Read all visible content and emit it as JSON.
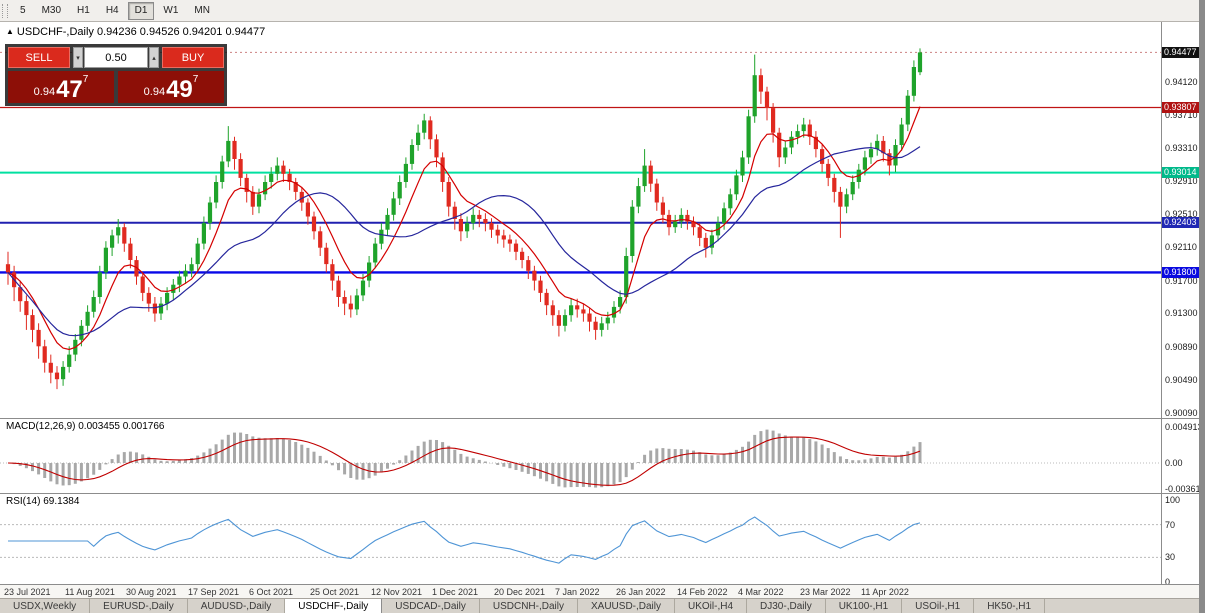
{
  "toolbar": {
    "timeframes": [
      "5",
      "M30",
      "H1",
      "H4",
      "D1",
      "W1",
      "MN"
    ],
    "active": "D1"
  },
  "chart": {
    "symbol_title": "USDCHF-,Daily",
    "ohlc_text": "0.94236 0.94526 0.94201 0.94477",
    "marker": "▲",
    "up_color": "#1fa32b",
    "down_color": "#e02a20",
    "ma_fast_color": "#d40000",
    "ma_slow_color": "#26269c"
  },
  "trade_panel": {
    "sell_label": "SELL",
    "buy_label": "BUY",
    "volume": "0.50",
    "spin_down": "▾",
    "spin_up": "▴",
    "sell_price_main": "0.94",
    "sell_price_big": "47",
    "sell_price_sup": "7",
    "buy_price_main": "0.94",
    "buy_price_big": "49",
    "buy_price_sup": "7"
  },
  "price_axis": {
    "ticks": [
      "0.94120",
      "0.93710",
      "0.93310",
      "0.92910",
      "0.92510",
      "0.92110",
      "0.91700",
      "0.91300",
      "0.90890",
      "0.90490",
      "0.90090"
    ],
    "tags": [
      {
        "text": "0.94477",
        "price": 0.94477,
        "bg": "#111111"
      },
      {
        "text": "0.93807",
        "price": 0.93807,
        "bg": "#b01212"
      },
      {
        "text": "0.93014",
        "price": 0.93014,
        "bg": "#00b98a"
      },
      {
        "text": "0.92403",
        "price": 0.92403,
        "bg": "#2028b4"
      },
      {
        "text": "0.91800",
        "price": 0.918,
        "bg": "#0a0ae0"
      }
    ]
  },
  "hlines": [
    {
      "price": 0.93807,
      "color": "#c01414",
      "width": 1.3
    },
    {
      "price": 0.93014,
      "color": "#00e0a0",
      "width": 2
    },
    {
      "price": 0.92403,
      "color": "#2020b0",
      "width": 2
    },
    {
      "price": 0.918,
      "color": "#0808e8",
      "width": 2.4
    }
  ],
  "macd": {
    "label": "MACD(12,26,9) 0.003455 0.001766",
    "axis": [
      {
        "text": "0.004913",
        "v": 0.004913
      },
      {
        "text": "0.00",
        "v": 0
      },
      {
        "text": "-0.00361",
        "v": -0.00361
      }
    ],
    "params": [
      12,
      26,
      9
    ]
  },
  "rsi": {
    "label": "RSI(14) 69.1384",
    "axis": [
      {
        "text": "100",
        "v": 100
      },
      {
        "text": "70",
        "v": 70
      },
      {
        "text": "30",
        "v": 30
      },
      {
        "text": "0",
        "v": 0
      }
    ],
    "period": 14,
    "line_color": "#4f95d6"
  },
  "tabs": [
    {
      "label": "USDX,Weekly",
      "active": false
    },
    {
      "label": "EURUSD-,Daily",
      "active": false
    },
    {
      "label": "AUDUSD-,Daily",
      "active": false
    },
    {
      "label": "USDCHF-,Daily",
      "active": true
    },
    {
      "label": "USDCAD-,Daily",
      "active": false
    },
    {
      "label": "USDCNH-,Daily",
      "active": false
    },
    {
      "label": "XAUUSD-,Daily",
      "active": false
    },
    {
      "label": "UKOil-,H4",
      "active": false
    },
    {
      "label": "DJ30-,Daily",
      "active": false
    },
    {
      "label": "UK100-,H1",
      "active": false
    },
    {
      "label": "USOil-,H1",
      "active": false
    },
    {
      "label": "HK50-,H1",
      "active": false
    }
  ],
  "chart_data": {
    "type": "candlestick",
    "symbol": "USDCHF",
    "timeframe": "Daily",
    "title": "USDCHF-,Daily",
    "y_range": [
      0.9004,
      0.9475
    ],
    "x_labels": [
      "23 Jul 2021",
      "11 Aug 2021",
      "30 Aug 2021",
      "17 Sep 2021",
      "6 Oct 2021",
      "25 Oct 2021",
      "12 Nov 2021",
      "1 Dec 2021",
      "20 Dec 2021",
      "7 Jan 2022",
      "26 Jan 2022",
      "14 Feb 2022",
      "4 Mar 2022",
      "23 Mar 2022",
      "11 Apr 2022"
    ],
    "x_label_step": 10,
    "candles": [
      [
        0.919,
        0.9205,
        0.9165,
        0.918
      ],
      [
        0.918,
        0.9188,
        0.9145,
        0.9162
      ],
      [
        0.9162,
        0.917,
        0.9132,
        0.9145
      ],
      [
        0.9145,
        0.9152,
        0.911,
        0.9128
      ],
      [
        0.9128,
        0.9135,
        0.9095,
        0.911
      ],
      [
        0.911,
        0.9118,
        0.9075,
        0.909
      ],
      [
        0.909,
        0.9098,
        0.9058,
        0.907
      ],
      [
        0.907,
        0.908,
        0.9045,
        0.9058
      ],
      [
        0.9058,
        0.9066,
        0.9038,
        0.905
      ],
      [
        0.905,
        0.9072,
        0.9042,
        0.9065
      ],
      [
        0.9065,
        0.909,
        0.9058,
        0.908
      ],
      [
        0.908,
        0.9105,
        0.9072,
        0.9098
      ],
      [
        0.9098,
        0.9122,
        0.909,
        0.9115
      ],
      [
        0.9115,
        0.914,
        0.9108,
        0.9132
      ],
      [
        0.9132,
        0.9158,
        0.9125,
        0.915
      ],
      [
        0.915,
        0.9188,
        0.9142,
        0.918
      ],
      [
        0.918,
        0.9218,
        0.9172,
        0.921
      ],
      [
        0.921,
        0.9232,
        0.92,
        0.9225
      ],
      [
        0.9225,
        0.9245,
        0.9215,
        0.9235
      ],
      [
        0.9235,
        0.924,
        0.9205,
        0.9215
      ],
      [
        0.9215,
        0.9222,
        0.9185,
        0.9195
      ],
      [
        0.9195,
        0.92,
        0.9165,
        0.9175
      ],
      [
        0.9175,
        0.918,
        0.9145,
        0.9155
      ],
      [
        0.9155,
        0.9162,
        0.9132,
        0.9142
      ],
      [
        0.9142,
        0.915,
        0.912,
        0.913
      ],
      [
        0.913,
        0.915,
        0.9122,
        0.9142
      ],
      [
        0.9142,
        0.9162,
        0.9134,
        0.9155
      ],
      [
        0.9155,
        0.9172,
        0.9146,
        0.9165
      ],
      [
        0.9165,
        0.9182,
        0.9156,
        0.9175
      ],
      [
        0.9175,
        0.919,
        0.9166,
        0.9182
      ],
      [
        0.9182,
        0.9198,
        0.9174,
        0.919
      ],
      [
        0.919,
        0.9222,
        0.9182,
        0.9215
      ],
      [
        0.9215,
        0.9248,
        0.9208,
        0.924
      ],
      [
        0.924,
        0.9272,
        0.9232,
        0.9265
      ],
      [
        0.9265,
        0.9298,
        0.9258,
        0.929
      ],
      [
        0.929,
        0.9322,
        0.9282,
        0.9315
      ],
      [
        0.9315,
        0.9358,
        0.9308,
        0.934
      ],
      [
        0.934,
        0.9345,
        0.9305,
        0.9318
      ],
      [
        0.9318,
        0.9325,
        0.9285,
        0.9295
      ],
      [
        0.9295,
        0.93,
        0.9265,
        0.9278
      ],
      [
        0.9278,
        0.9285,
        0.925,
        0.926
      ],
      [
        0.926,
        0.9282,
        0.9252,
        0.9275
      ],
      [
        0.9275,
        0.9298,
        0.9268,
        0.929
      ],
      [
        0.929,
        0.9308,
        0.9282,
        0.93
      ],
      [
        0.93,
        0.932,
        0.9292,
        0.931
      ],
      [
        0.931,
        0.9316,
        0.929,
        0.93
      ],
      [
        0.93,
        0.9306,
        0.928,
        0.929
      ],
      [
        0.929,
        0.9295,
        0.9268,
        0.9278
      ],
      [
        0.9278,
        0.9284,
        0.9255,
        0.9265
      ],
      [
        0.9265,
        0.927,
        0.9238,
        0.9248
      ],
      [
        0.9248,
        0.9254,
        0.922,
        0.923
      ],
      [
        0.923,
        0.9236,
        0.92,
        0.921
      ],
      [
        0.921,
        0.9216,
        0.918,
        0.919
      ],
      [
        0.919,
        0.9196,
        0.9158,
        0.917
      ],
      [
        0.917,
        0.9176,
        0.9138,
        0.915
      ],
      [
        0.915,
        0.9158,
        0.9128,
        0.9142
      ],
      [
        0.9142,
        0.9152,
        0.9125,
        0.9135
      ],
      [
        0.9135,
        0.916,
        0.9128,
        0.9152
      ],
      [
        0.9152,
        0.9178,
        0.9145,
        0.917
      ],
      [
        0.917,
        0.92,
        0.9162,
        0.9192
      ],
      [
        0.9192,
        0.9222,
        0.9185,
        0.9215
      ],
      [
        0.9215,
        0.924,
        0.9208,
        0.9232
      ],
      [
        0.9232,
        0.9258,
        0.9225,
        0.925
      ],
      [
        0.925,
        0.9278,
        0.9243,
        0.927
      ],
      [
        0.927,
        0.9298,
        0.9262,
        0.929
      ],
      [
        0.929,
        0.932,
        0.9283,
        0.9312
      ],
      [
        0.9312,
        0.9342,
        0.9305,
        0.9335
      ],
      [
        0.9335,
        0.936,
        0.9328,
        0.935
      ],
      [
        0.935,
        0.9373,
        0.9342,
        0.9365
      ],
      [
        0.9365,
        0.937,
        0.933,
        0.9342
      ],
      [
        0.9342,
        0.9348,
        0.9308,
        0.932
      ],
      [
        0.932,
        0.9326,
        0.9278,
        0.929
      ],
      [
        0.929,
        0.9296,
        0.9248,
        0.926
      ],
      [
        0.926,
        0.9266,
        0.9232,
        0.9245
      ],
      [
        0.9245,
        0.9252,
        0.9218,
        0.923
      ],
      [
        0.923,
        0.9248,
        0.9222,
        0.924
      ],
      [
        0.924,
        0.9258,
        0.9232,
        0.925
      ],
      [
        0.925,
        0.9256,
        0.9235,
        0.9245
      ],
      [
        0.9245,
        0.9252,
        0.923,
        0.924
      ],
      [
        0.924,
        0.9246,
        0.9222,
        0.9232
      ],
      [
        0.9232,
        0.9238,
        0.9215,
        0.9225
      ],
      [
        0.9225,
        0.9232,
        0.921,
        0.922
      ],
      [
        0.922,
        0.9226,
        0.9205,
        0.9215
      ],
      [
        0.9215,
        0.922,
        0.9195,
        0.9205
      ],
      [
        0.9205,
        0.921,
        0.9185,
        0.9195
      ],
      [
        0.9195,
        0.92,
        0.9172,
        0.9182
      ],
      [
        0.9182,
        0.9188,
        0.9158,
        0.917
      ],
      [
        0.917,
        0.9176,
        0.9144,
        0.9155
      ],
      [
        0.9155,
        0.916,
        0.9128,
        0.914
      ],
      [
        0.914,
        0.9146,
        0.9115,
        0.9128
      ],
      [
        0.9128,
        0.9134,
        0.9102,
        0.9115
      ],
      [
        0.9115,
        0.9135,
        0.9108,
        0.9128
      ],
      [
        0.9128,
        0.9148,
        0.912,
        0.914
      ],
      [
        0.914,
        0.9148,
        0.9125,
        0.9135
      ],
      [
        0.9135,
        0.9142,
        0.912,
        0.913
      ],
      [
        0.913,
        0.9136,
        0.9108,
        0.912
      ],
      [
        0.912,
        0.9126,
        0.9098,
        0.911
      ],
      [
        0.911,
        0.9126,
        0.9102,
        0.9118
      ],
      [
        0.9118,
        0.9132,
        0.911,
        0.9125
      ],
      [
        0.9125,
        0.9145,
        0.9118,
        0.9138
      ],
      [
        0.9138,
        0.9158,
        0.913,
        0.915
      ],
      [
        0.915,
        0.921,
        0.9142,
        0.92
      ],
      [
        0.92,
        0.9268,
        0.9192,
        0.926
      ],
      [
        0.926,
        0.9295,
        0.9252,
        0.9285
      ],
      [
        0.9285,
        0.933,
        0.9278,
        0.931
      ],
      [
        0.931,
        0.9316,
        0.9278,
        0.9288
      ],
      [
        0.9288,
        0.9294,
        0.9255,
        0.9265
      ],
      [
        0.9265,
        0.9272,
        0.924,
        0.925
      ],
      [
        0.925,
        0.9256,
        0.9225,
        0.9235
      ],
      [
        0.9235,
        0.925,
        0.9228,
        0.9242
      ],
      [
        0.9242,
        0.9258,
        0.9234,
        0.925
      ],
      [
        0.925,
        0.9256,
        0.9232,
        0.9242
      ],
      [
        0.9242,
        0.9248,
        0.9225,
        0.9235
      ],
      [
        0.9235,
        0.924,
        0.9212,
        0.9222
      ],
      [
        0.9222,
        0.9228,
        0.9198,
        0.921
      ],
      [
        0.921,
        0.9232,
        0.9202,
        0.9225
      ],
      [
        0.9225,
        0.9248,
        0.9218,
        0.924
      ],
      [
        0.924,
        0.9265,
        0.9232,
        0.9258
      ],
      [
        0.9258,
        0.9282,
        0.925,
        0.9275
      ],
      [
        0.9275,
        0.9305,
        0.9268,
        0.9298
      ],
      [
        0.9298,
        0.9328,
        0.929,
        0.932
      ],
      [
        0.932,
        0.9378,
        0.9312,
        0.937
      ],
      [
        0.937,
        0.9445,
        0.9362,
        0.942
      ],
      [
        0.942,
        0.9428,
        0.9385,
        0.94
      ],
      [
        0.94,
        0.9406,
        0.9365,
        0.938
      ],
      [
        0.938,
        0.9386,
        0.9338,
        0.935
      ],
      [
        0.935,
        0.9356,
        0.9308,
        0.932
      ],
      [
        0.932,
        0.934,
        0.9312,
        0.9332
      ],
      [
        0.9332,
        0.9352,
        0.9324,
        0.9345
      ],
      [
        0.9345,
        0.936,
        0.9336,
        0.9352
      ],
      [
        0.9352,
        0.9368,
        0.9344,
        0.936
      ],
      [
        0.936,
        0.9366,
        0.9335,
        0.9345
      ],
      [
        0.9345,
        0.9352,
        0.932,
        0.933
      ],
      [
        0.933,
        0.9336,
        0.9302,
        0.9312
      ],
      [
        0.9312,
        0.9318,
        0.9285,
        0.9295
      ],
      [
        0.9295,
        0.93,
        0.9265,
        0.9278
      ],
      [
        0.9278,
        0.9284,
        0.9222,
        0.926
      ],
      [
        0.926,
        0.9282,
        0.9252,
        0.9275
      ],
      [
        0.9275,
        0.9298,
        0.9268,
        0.929
      ],
      [
        0.929,
        0.9312,
        0.9282,
        0.9305
      ],
      [
        0.9305,
        0.9328,
        0.9298,
        0.932
      ],
      [
        0.932,
        0.9338,
        0.9312,
        0.933
      ],
      [
        0.933,
        0.9348,
        0.9322,
        0.934
      ],
      [
        0.934,
        0.9346,
        0.9315,
        0.9325
      ],
      [
        0.9325,
        0.933,
        0.9298,
        0.931
      ],
      [
        0.931,
        0.9342,
        0.9302,
        0.9335
      ],
      [
        0.9335,
        0.9368,
        0.9328,
        0.936
      ],
      [
        0.936,
        0.9402,
        0.9352,
        0.9395
      ],
      [
        0.9395,
        0.9438,
        0.9388,
        0.943
      ],
      [
        0.94236,
        0.94526,
        0.94201,
        0.94477
      ]
    ]
  }
}
